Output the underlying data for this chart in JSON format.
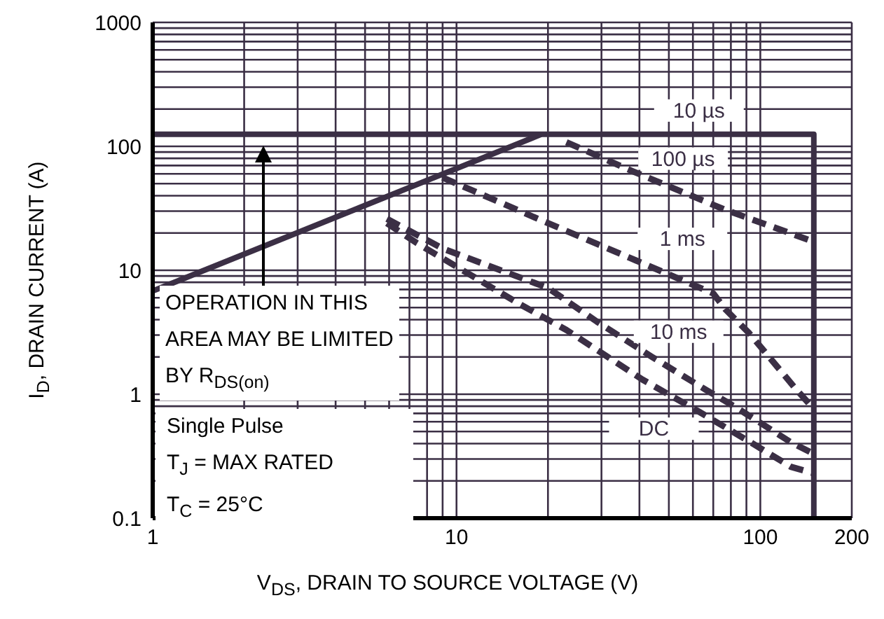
{
  "chart_data": {
    "type": "line",
    "xlabel": "V$_{DS}$, DRAIN TO SOURCE VOLTAGE (V)",
    "ylabel": "I$_{D}$, DRAIN CURRENT (A)",
    "log": "xy",
    "grid": true,
    "legend": false,
    "marker": "none",
    "xlim": [
      1,
      200
    ],
    "ylim": [
      0.1,
      1000
    ],
    "xticks": [
      1,
      {
        "value": 2,
        "label": null
      },
      {
        "value": 3,
        "label": null
      },
      {
        "value": 4,
        "label": null
      },
      {
        "value": 5,
        "label": null
      },
      {
        "value": 6,
        "label": null
      },
      {
        "value": 7,
        "label": null
      },
      {
        "value": 8,
        "label": null
      },
      {
        "value": 9,
        "label": null
      },
      10,
      {
        "value": 20,
        "label": null
      },
      {
        "value": 30,
        "label": null
      },
      {
        "value": 40,
        "label": null
      },
      {
        "value": 50,
        "label": null
      },
      {
        "value": 60,
        "label": null
      },
      {
        "value": 70,
        "label": null
      },
      {
        "value": 80,
        "label": null
      },
      {
        "value": 90,
        "label": null
      },
      100,
      200
    ],
    "yticks": [
      0.1,
      {
        "value": 0.2,
        "label": null
      },
      {
        "value": 0.3,
        "label": null
      },
      {
        "value": 0.4,
        "label": null
      },
      {
        "value": 0.5,
        "label": null
      },
      {
        "value": 0.6,
        "label": null
      },
      {
        "value": 0.7,
        "label": null
      },
      {
        "value": 0.8,
        "label": null
      },
      {
        "value": 0.9,
        "label": null
      },
      1,
      {
        "value": 2,
        "label": null
      },
      {
        "value": 3,
        "label": null
      },
      {
        "value": 4,
        "label": null
      },
      {
        "value": 5,
        "label": null
      },
      {
        "value": 6,
        "label": null
      },
      {
        "value": 7,
        "label": null
      },
      {
        "value": 8,
        "label": null
      },
      {
        "value": 9,
        "label": null
      },
      10,
      {
        "value": 20,
        "label": null
      },
      {
        "value": 30,
        "label": null
      },
      {
        "value": 40,
        "label": null
      },
      {
        "value": 50,
        "label": null
      },
      {
        "value": 60,
        "label": null
      },
      {
        "value": 70,
        "label": null
      },
      {
        "value": 80,
        "label": null
      },
      {
        "value": 90,
        "label": null
      },
      100,
      {
        "value": 200,
        "label": null
      },
      {
        "value": 300,
        "label": null
      },
      {
        "value": 400,
        "label": null
      },
      {
        "value": 500,
        "label": null
      },
      {
        "value": 600,
        "label": null
      },
      {
        "value": 700,
        "label": null
      },
      {
        "value": 800,
        "label": null
      },
      {
        "value": 900,
        "label": null
      },
      1000
    ],
    "series": [
      {
        "type": "line",
        "line_style": "solid",
        "color": "#3b2f45",
        "x": [
          1,
          19
        ],
        "values": [
          6.8,
          125
        ]
      },
      {
        "type": "line",
        "line_style": "solid",
        "name": "10 µs",
        "color": "#3b2f45",
        "x": [
          1,
          150,
          150
        ],
        "values": [
          125,
          125,
          0.1
        ]
      },
      {
        "type": "line",
        "line_style": "dashed",
        "name": "100 µs",
        "color": "#3b2f45",
        "x": [
          23,
          38,
          76,
          150
        ],
        "values": [
          108,
          63,
          31,
          17
        ]
      },
      {
        "type": "line",
        "line_style": "dashed",
        "name": "1 ms",
        "color": "#3b2f45",
        "x": [
          9,
          20,
          39,
          70,
          77,
          92,
          131,
          150
        ],
        "values": [
          56,
          24,
          12,
          6.5,
          4.8,
          3.1,
          1.1,
          0.76
        ]
      },
      {
        "type": "line",
        "line_style": "dashed",
        "name": "10 ms",
        "color": "#3b2f45",
        "x": [
          5.9,
          9,
          20,
          29,
          44,
          66,
          82,
          126,
          150
        ],
        "values": [
          26,
          15,
          7.2,
          3.85,
          2,
          1.09,
          0.8,
          0.41,
          0.33
        ]
      },
      {
        "type": "line",
        "line_style": "dashed",
        "name": "DC",
        "color": "#3b2f45",
        "x": [
          5.9,
          7.4,
          16,
          23,
          41,
          63,
          96,
          126,
          150
        ],
        "values": [
          24,
          16.6,
          5.4,
          3.3,
          1.31,
          0.72,
          0.39,
          0.26,
          0.23
        ]
      }
    ],
    "annotations": [
      "OPERATION IN THIS",
      "AREA MAY BE LIMITED",
      "BY R$_{DS(on)}$",
      "Single Pulse",
      "T$_{J}$ = MAX RATED",
      "T$_{C}$ = 25°C"
    ]
  }
}
